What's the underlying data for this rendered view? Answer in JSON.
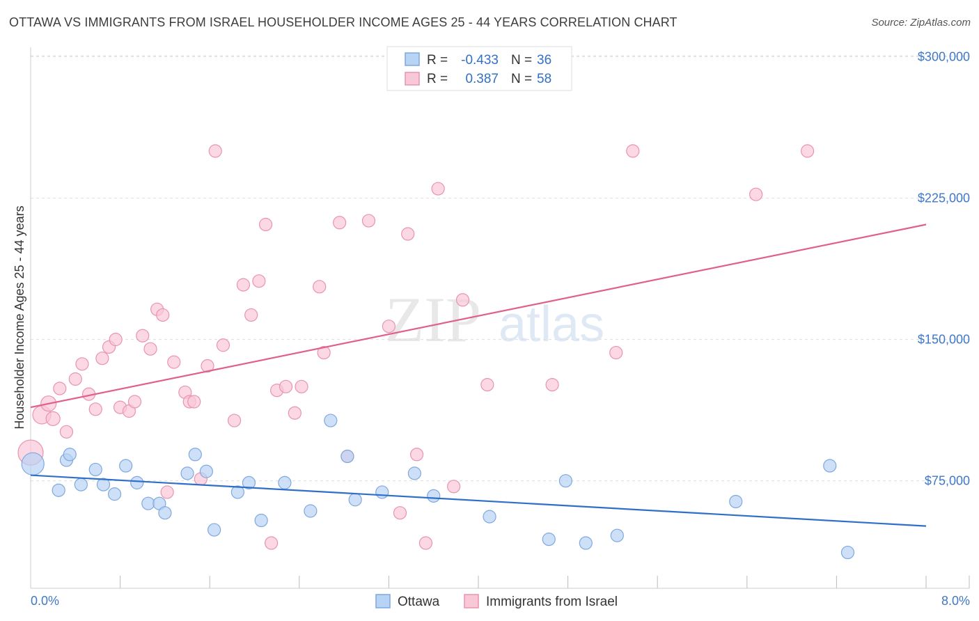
{
  "title": "OTTAWA VS IMMIGRANTS FROM ISRAEL HOUSEHOLDER INCOME AGES 25 - 44 YEARS CORRELATION CHART",
  "source": "Source: ZipAtlas.com",
  "watermark": {
    "zip": "ZIP",
    "atlas": "atlas"
  },
  "legend_top": {
    "r_label": "R =",
    "n_label": "N =",
    "rows": [
      {
        "r": "-0.433",
        "n": "36"
      },
      {
        "r": "0.387",
        "n": "58"
      }
    ]
  },
  "legend_bottom": [
    "Ottawa",
    "Immigrants from Israel"
  ],
  "colors": {
    "ottawa_fill": "#b8d3f4",
    "ottawa_stroke": "#7ea8e0",
    "ottawa_line": "#2f6fcc",
    "israel_fill": "#f9c8d7",
    "israel_stroke": "#e993b0",
    "israel_line": "#e0608a",
    "axis_label": "#3f78c8",
    "grid": "#dddddd"
  },
  "chart_data": {
    "type": "scatter",
    "title": "OTTAWA VS IMMIGRANTS FROM ISRAEL HOUSEHOLDER INCOME AGES 25 - 44 YEARS CORRELATION CHART",
    "xlabel": "",
    "ylabel": "Householder Income Ages 25 - 44 years",
    "xlim": [
      0.0,
      8.0
    ],
    "ylim": [
      18000,
      305000
    ],
    "x_tick_labels": [
      "0.0%",
      "8.0%"
    ],
    "y_ticks": [
      75000,
      150000,
      225000,
      300000
    ],
    "y_tick_labels": [
      "$75,000",
      "$150,000",
      "$225,000",
      "$300,000"
    ],
    "grid": true,
    "legend_position": "top-center",
    "series": [
      {
        "name": "Ottawa",
        "r": -0.433,
        "n": 36,
        "trend": [
          [
            0.0,
            78000
          ],
          [
            8.0,
            51000
          ]
        ],
        "points": [
          [
            0.02,
            84000,
            16
          ],
          [
            0.32,
            86000,
            9
          ],
          [
            0.25,
            70000,
            9
          ],
          [
            0.35,
            89000,
            9
          ],
          [
            0.45,
            73000,
            9
          ],
          [
            0.58,
            81000,
            9
          ],
          [
            0.65,
            73000,
            9
          ],
          [
            0.75,
            68000,
            9
          ],
          [
            0.85,
            83000,
            9
          ],
          [
            0.95,
            74000,
            9
          ],
          [
            1.05,
            63000,
            9
          ],
          [
            1.15,
            63000,
            9
          ],
          [
            1.2,
            58000,
            9
          ],
          [
            1.4,
            79000,
            9
          ],
          [
            1.47,
            89000,
            9
          ],
          [
            1.57,
            80000,
            9
          ],
          [
            1.64,
            49000,
            9
          ],
          [
            1.85,
            69000,
            9
          ],
          [
            1.95,
            74000,
            9
          ],
          [
            2.06,
            54000,
            9
          ],
          [
            2.27,
            74000,
            9
          ],
          [
            2.5,
            59000,
            9
          ],
          [
            2.68,
            107000,
            9
          ],
          [
            2.83,
            88000,
            9
          ],
          [
            2.9,
            65000,
            9
          ],
          [
            3.14,
            69000,
            9
          ],
          [
            3.43,
            79000,
            9
          ],
          [
            3.6,
            67000,
            9
          ],
          [
            4.1,
            56000,
            9
          ],
          [
            4.63,
            44000,
            9
          ],
          [
            4.78,
            75000,
            9
          ],
          [
            4.96,
            42000,
            9
          ],
          [
            5.24,
            46000,
            9
          ],
          [
            6.3,
            64000,
            9
          ],
          [
            7.14,
            83000,
            9
          ],
          [
            7.3,
            37000,
            9
          ]
        ]
      },
      {
        "name": "Immigrants from Israel",
        "r": 0.387,
        "n": 58,
        "trend": [
          [
            0.0,
            114000
          ],
          [
            8.0,
            211000
          ]
        ],
        "points": [
          [
            0.0,
            90000,
            18
          ],
          [
            0.1,
            110000,
            13
          ],
          [
            0.16,
            116000,
            11
          ],
          [
            0.2,
            108000,
            10
          ],
          [
            0.26,
            124000,
            9
          ],
          [
            0.32,
            101000,
            9
          ],
          [
            0.4,
            129000,
            9
          ],
          [
            0.46,
            137000,
            9
          ],
          [
            0.52,
            121000,
            9
          ],
          [
            0.58,
            113000,
            9
          ],
          [
            0.64,
            140000,
            9
          ],
          [
            0.7,
            146000,
            9
          ],
          [
            0.76,
            150000,
            9
          ],
          [
            0.8,
            114000,
            9
          ],
          [
            0.88,
            112000,
            9
          ],
          [
            0.93,
            117000,
            9
          ],
          [
            1.0,
            152000,
            9
          ],
          [
            1.07,
            145000,
            9
          ],
          [
            1.13,
            166000,
            9
          ],
          [
            1.18,
            163000,
            9
          ],
          [
            1.22,
            69000,
            9
          ],
          [
            1.28,
            138000,
            9
          ],
          [
            1.38,
            122000,
            9
          ],
          [
            1.42,
            117000,
            9
          ],
          [
            1.46,
            117000,
            9
          ],
          [
            1.52,
            76000,
            9
          ],
          [
            1.58,
            136000,
            9
          ],
          [
            1.65,
            250000,
            9
          ],
          [
            1.72,
            147000,
            9
          ],
          [
            1.82,
            107000,
            9
          ],
          [
            1.9,
            179000,
            9
          ],
          [
            1.97,
            163000,
            9
          ],
          [
            2.04,
            181000,
            9
          ],
          [
            2.1,
            211000,
            9
          ],
          [
            2.15,
            42000,
            9
          ],
          [
            2.2,
            123000,
            9
          ],
          [
            2.28,
            125000,
            9
          ],
          [
            2.36,
            111000,
            9
          ],
          [
            2.42,
            125000,
            9
          ],
          [
            2.58,
            178000,
            9
          ],
          [
            2.62,
            143000,
            9
          ],
          [
            2.76,
            212000,
            9
          ],
          [
            2.83,
            88000,
            9
          ],
          [
            3.02,
            213000,
            9
          ],
          [
            3.2,
            157000,
            9
          ],
          [
            3.3,
            58000,
            9
          ],
          [
            3.37,
            206000,
            9
          ],
          [
            3.45,
            89000,
            9
          ],
          [
            3.53,
            42000,
            9
          ],
          [
            3.64,
            230000,
            9
          ],
          [
            3.78,
            72000,
            9
          ],
          [
            3.86,
            171000,
            9
          ],
          [
            4.08,
            126000,
            9
          ],
          [
            4.66,
            126000,
            9
          ],
          [
            5.23,
            143000,
            9
          ],
          [
            5.38,
            250000,
            9
          ],
          [
            6.48,
            227000,
            9
          ],
          [
            6.94,
            250000,
            9
          ]
        ]
      }
    ]
  }
}
